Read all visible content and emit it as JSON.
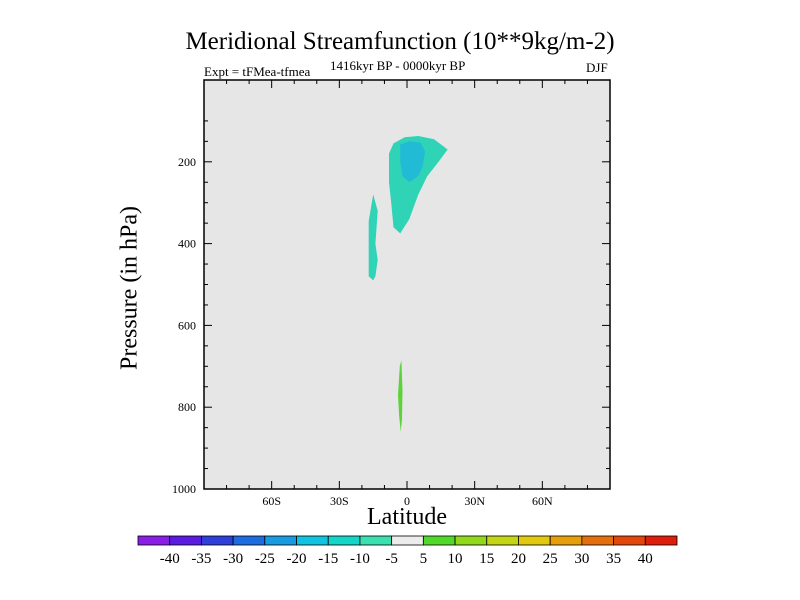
{
  "chart_data": {
    "type": "contour",
    "title": "Meridional Streamfunction (10**9kg/m-2)",
    "subtitle_left": "Expt = tFMea-tfmea",
    "subtitle_center": "1416kyr BP - 0000kyr BP",
    "subtitle_right": "DJF",
    "xlabel": "Latitude",
    "ylabel": "Pressure (in hPa)",
    "xlim": [
      -90,
      90
    ],
    "ylim": [
      1000,
      0
    ],
    "y_reversed": true,
    "x_ticks": [
      {
        "value": -60,
        "label": "60S"
      },
      {
        "value": -30,
        "label": "30S"
      },
      {
        "value": 0,
        "label": "0"
      },
      {
        "value": 30,
        "label": "30N"
      },
      {
        "value": 60,
        "label": "60N"
      }
    ],
    "y_ticks": [
      {
        "value": 200,
        "label": "200"
      },
      {
        "value": 400,
        "label": "400"
      },
      {
        "value": 600,
        "label": "600"
      },
      {
        "value": 800,
        "label": "800"
      },
      {
        "value": 1000,
        "label": "1000"
      }
    ],
    "background_color": "#e6e6e6",
    "regions": [
      {
        "name": "nh-upper-negative-outer",
        "level": "-10 to -5",
        "color": "#2fd3b5",
        "points": [
          [
            -8,
            180
          ],
          [
            -6,
            155
          ],
          [
            -1,
            140
          ],
          [
            5,
            137
          ],
          [
            12,
            145
          ],
          [
            18,
            170
          ],
          [
            14,
            200
          ],
          [
            9,
            235
          ],
          [
            5,
            280
          ],
          [
            1,
            340
          ],
          [
            -3,
            375
          ],
          [
            -6,
            360
          ],
          [
            -7,
            300
          ],
          [
            -8,
            250
          ],
          [
            -8,
            200
          ]
        ]
      },
      {
        "name": "nh-upper-negative-core",
        "level": "-15 to -10",
        "color": "#22bbd6",
        "points": [
          [
            -3,
            158
          ],
          [
            1,
            150
          ],
          [
            6,
            153
          ],
          [
            8,
            175
          ],
          [
            7,
            210
          ],
          [
            5,
            235
          ],
          [
            1,
            250
          ],
          [
            -2,
            235
          ],
          [
            -3,
            200
          ]
        ]
      },
      {
        "name": "sh-upper-negative",
        "level": "-10 to -5",
        "color": "#2fd3b5",
        "points": [
          [
            -17,
            345
          ],
          [
            -15,
            280
          ],
          [
            -13,
            320
          ],
          [
            -14,
            400
          ],
          [
            -13,
            440
          ],
          [
            -14,
            480
          ],
          [
            -15,
            490
          ],
          [
            -17,
            480
          ],
          [
            -17,
            420
          ]
        ]
      },
      {
        "name": "lower-positive",
        "level": "5 to 10",
        "color": "#5ed23a",
        "points": [
          [
            -4,
            770
          ],
          [
            -3.2,
            700
          ],
          [
            -2.5,
            685
          ],
          [
            -2,
            760
          ],
          [
            -2.2,
            830
          ],
          [
            -2.8,
            860
          ],
          [
            -3.5,
            820
          ]
        ]
      }
    ],
    "colorbar": {
      "labels": [
        "-40",
        "-35",
        "-30",
        "-25",
        "-20",
        "-15",
        "-10",
        "-5",
        "5",
        "10",
        "15",
        "20",
        "25",
        "30",
        "35",
        "40"
      ],
      "colors": [
        "#8a1ee6",
        "#5b1be0",
        "#2f3fd9",
        "#1d6de0",
        "#189be0",
        "#10c3e0",
        "#14d6c8",
        "#3ae0b0",
        "#ececec",
        "#50d82a",
        "#92d81a",
        "#c3d615",
        "#e2c80e",
        "#e69e0a",
        "#e3700c",
        "#e2460a",
        "#de1e0c"
      ]
    }
  }
}
